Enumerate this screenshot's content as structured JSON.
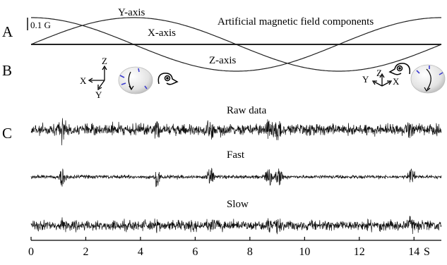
{
  "panel_labels": {
    "a": "A",
    "b": "B",
    "c": "C"
  },
  "panel_a": {
    "title": "Artificial magnetic field components",
    "scale_bar_label": "0.1 G",
    "curves": [
      {
        "name": "Y-axis"
      },
      {
        "name": "X-axis"
      },
      {
        "name": "Z-axis"
      }
    ]
  },
  "panel_b": {
    "left_axes": {
      "z": "Z",
      "x": "X",
      "y": "Y"
    },
    "right_axes": {
      "z": "Z",
      "x": "X",
      "y": "Y"
    }
  },
  "panel_c": {
    "traces": [
      {
        "name": "Raw data"
      },
      {
        "name": "Fast"
      },
      {
        "name": "Slow"
      }
    ]
  },
  "time_axis": {
    "unit": "S",
    "ticks": [
      "0",
      "2",
      "4",
      "6",
      "8",
      "10",
      "12",
      "14"
    ]
  },
  "chart_data": {
    "type": "line",
    "title": "Artificial magnetic field components",
    "xlabel": "S",
    "xlim": [
      0,
      15
    ],
    "x_ticks": [
      0,
      2,
      4,
      6,
      8,
      10,
      12,
      14
    ],
    "panel_a_scale": "0.1 G",
    "field_components": [
      {
        "name": "Y-axis",
        "shape": "sine",
        "period_s": 15,
        "peak_at_s": 3.75,
        "trough_at_s": 11.25,
        "amplitude_G": 0.2
      },
      {
        "name": "X-axis",
        "shape": "flat",
        "level_G": 0.0
      },
      {
        "name": "Z-axis",
        "shape": "sine",
        "period_s": 15,
        "peak_at_s": 0.0,
        "trough_at_s": 7.5,
        "amplitude_G": 0.2
      }
    ],
    "spike_events_s": [
      1.15,
      4.6,
      6.55,
      8.7,
      9.05,
      13.9
    ],
    "traces": [
      {
        "name": "Raw data"
      },
      {
        "name": "Fast"
      },
      {
        "name": "Slow"
      }
    ]
  }
}
